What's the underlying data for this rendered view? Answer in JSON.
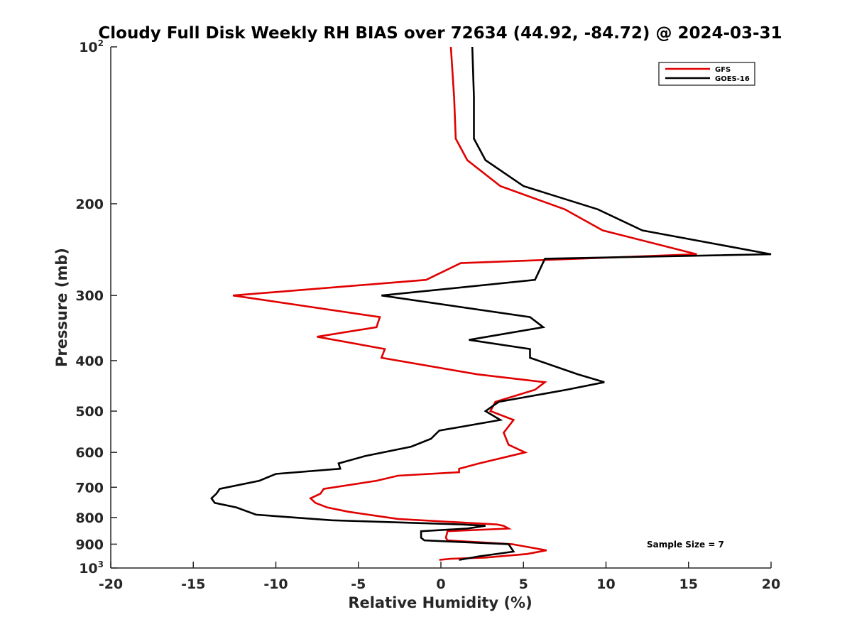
{
  "chart_data": {
    "type": "line",
    "title": "Cloudy Full Disk Weekly RH BIAS over 72634 (44.92, -84.72) @ 2024-03-31",
    "xlabel": "Relative Humidity (%)",
    "ylabel": "Pressure (mb)",
    "xlim": [
      -20,
      20
    ],
    "ylim": [
      100,
      1000
    ],
    "y_scale": "log",
    "y_reversed": true,
    "grid": false,
    "legend_position": "top-right",
    "x_ticks": [
      "-20",
      "-15",
      "-10",
      "-5",
      "0",
      "5",
      "10",
      "15",
      "20"
    ],
    "y_ticks": [
      {
        "value": 100,
        "base": "10",
        "exp": "2"
      },
      {
        "value": 200,
        "label": "200"
      },
      {
        "value": 300,
        "label": "300"
      },
      {
        "value": 400,
        "label": "400"
      },
      {
        "value": 500,
        "label": "500"
      },
      {
        "value": 600,
        "label": "600"
      },
      {
        "value": 700,
        "label": "700"
      },
      {
        "value": 800,
        "label": "800"
      },
      {
        "value": 900,
        "label": "900"
      },
      {
        "value": 1000,
        "base": "10",
        "exp": "3"
      }
    ],
    "annotation": "Sample Size = 7",
    "series": [
      {
        "name": "GFS",
        "color": "#e00000",
        "points": [
          [
            0.6,
            100
          ],
          [
            0.8,
            125
          ],
          [
            0.9,
            150
          ],
          [
            1.6,
            165
          ],
          [
            3.6,
            185
          ],
          [
            7.5,
            205
          ],
          [
            9.8,
            225
          ],
          [
            15.5,
            250
          ],
          [
            1.2,
            260
          ],
          [
            -0.9,
            280
          ],
          [
            -12.6,
            300
          ],
          [
            -3.7,
            330
          ],
          [
            -3.9,
            345
          ],
          [
            -7.5,
            360
          ],
          [
            -3.4,
            380
          ],
          [
            -3.6,
            395
          ],
          [
            2.2,
            425
          ],
          [
            6.3,
            440
          ],
          [
            5.7,
            455
          ],
          [
            3.3,
            480
          ],
          [
            3.0,
            500
          ],
          [
            4.4,
            520
          ],
          [
            3.8,
            550
          ],
          [
            4.1,
            580
          ],
          [
            5.1,
            600
          ],
          [
            2.3,
            630
          ],
          [
            1.1,
            645
          ],
          [
            1.1,
            655
          ],
          [
            -2.6,
            665
          ],
          [
            -3.9,
            680
          ],
          [
            -7.1,
            705
          ],
          [
            -7.3,
            720
          ],
          [
            -7.9,
            735
          ],
          [
            -7.6,
            750
          ],
          [
            -6.9,
            765
          ],
          [
            -5.6,
            780
          ],
          [
            -2.6,
            805
          ],
          [
            3.4,
            825
          ],
          [
            3.8,
            830
          ],
          [
            4.1,
            840
          ],
          [
            0.4,
            850
          ],
          [
            0.3,
            875
          ],
          [
            0.4,
            885
          ],
          [
            4.3,
            900
          ],
          [
            6.4,
            925
          ],
          [
            5.2,
            940
          ],
          [
            2.7,
            955
          ],
          [
            0.6,
            960
          ],
          [
            -0.1,
            965
          ]
        ]
      },
      {
        "name": "GOES-16",
        "color": "#000000",
        "points": [
          [
            1.9,
            100
          ],
          [
            2.0,
            125
          ],
          [
            2.0,
            150
          ],
          [
            2.7,
            165
          ],
          [
            5.0,
            185
          ],
          [
            9.5,
            205
          ],
          [
            12.2,
            225
          ],
          [
            20.0,
            250
          ],
          [
            6.3,
            255
          ],
          [
            5.7,
            280
          ],
          [
            -3.6,
            300
          ],
          [
            5.4,
            330
          ],
          [
            6.2,
            345
          ],
          [
            1.7,
            365
          ],
          [
            5.4,
            380
          ],
          [
            5.4,
            395
          ],
          [
            8.3,
            425
          ],
          [
            9.9,
            440
          ],
          [
            7.6,
            455
          ],
          [
            3.5,
            480
          ],
          [
            2.7,
            500
          ],
          [
            3.6,
            520
          ],
          [
            -0.1,
            545
          ],
          [
            -0.6,
            565
          ],
          [
            -1.8,
            585
          ],
          [
            -4.6,
            610
          ],
          [
            -6.2,
            630
          ],
          [
            -6.1,
            645
          ],
          [
            -10.0,
            660
          ],
          [
            -11.0,
            680
          ],
          [
            -13.4,
            705
          ],
          [
            -13.6,
            720
          ],
          [
            -13.9,
            735
          ],
          [
            -13.7,
            750
          ],
          [
            -12.4,
            765
          ],
          [
            -11.2,
            790
          ],
          [
            -6.6,
            810
          ],
          [
            1.3,
            825
          ],
          [
            2.7,
            830
          ],
          [
            1.6,
            840
          ],
          [
            -1.2,
            850
          ],
          [
            -1.2,
            875
          ],
          [
            -1.0,
            885
          ],
          [
            4.1,
            900
          ],
          [
            4.3,
            920
          ],
          [
            4.4,
            930
          ],
          [
            2.3,
            950
          ],
          [
            1.1,
            965
          ]
        ]
      }
    ]
  }
}
